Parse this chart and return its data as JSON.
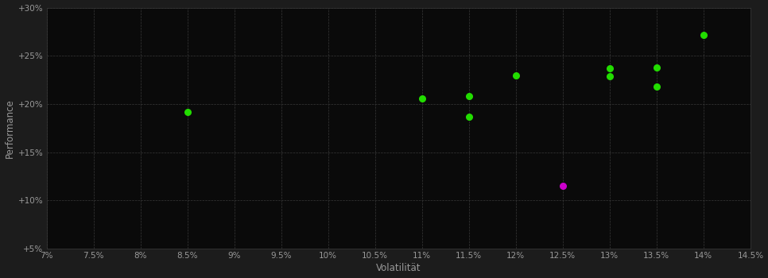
{
  "background_color": "#1c1c1c",
  "plot_bg_color": "#0a0a0a",
  "grid_color": "#383838",
  "xlabel": "Volatilität",
  "ylabel": "Performance",
  "xlim": [
    0.07,
    0.145
  ],
  "ylim": [
    0.05,
    0.3
  ],
  "xticks": [
    0.07,
    0.075,
    0.08,
    0.085,
    0.09,
    0.095,
    0.1,
    0.105,
    0.11,
    0.115,
    0.12,
    0.125,
    0.13,
    0.135,
    0.14,
    0.145
  ],
  "yticks": [
    0.05,
    0.1,
    0.15,
    0.2,
    0.25,
    0.3
  ],
  "xtick_labels": [
    "7%",
    "7.5%",
    "8%",
    "8.5%",
    "9%",
    "9.5%",
    "10%",
    "10.5%",
    "11%",
    "11.5%",
    "12%",
    "12.5%",
    "13%",
    "13.5%",
    "14%",
    "14.5%"
  ],
  "ytick_labels": [
    "+5%",
    "+10%",
    "+15%",
    "+20%",
    "+25%",
    "+30%"
  ],
  "green_points": [
    [
      0.085,
      0.192
    ],
    [
      0.11,
      0.206
    ],
    [
      0.115,
      0.208
    ],
    [
      0.115,
      0.187
    ],
    [
      0.12,
      0.23
    ],
    [
      0.13,
      0.237
    ],
    [
      0.13,
      0.229
    ],
    [
      0.135,
      0.238
    ],
    [
      0.135,
      0.218
    ],
    [
      0.14,
      0.272
    ]
  ],
  "magenta_points": [
    [
      0.125,
      0.115
    ]
  ],
  "green_color": "#22dd00",
  "magenta_color": "#cc00cc",
  "point_size": 30,
  "tick_color": "#999999",
  "tick_fontsize": 7.5,
  "label_fontsize": 8.5,
  "label_color": "#999999"
}
